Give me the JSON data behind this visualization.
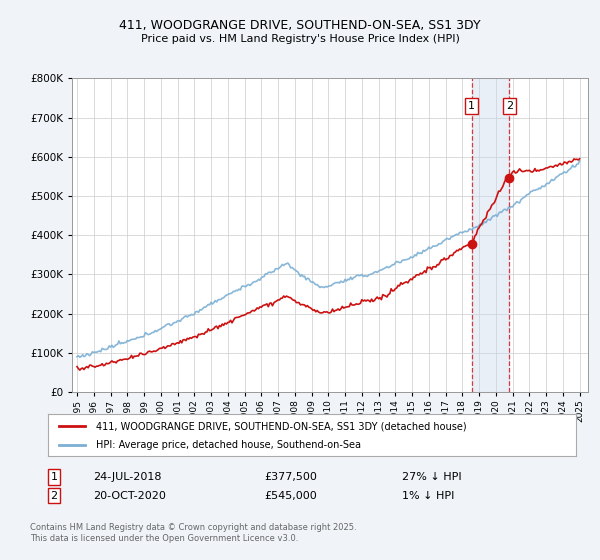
{
  "title": "411, WOODGRANGE DRIVE, SOUTHEND-ON-SEA, SS1 3DY",
  "subtitle": "Price paid vs. HM Land Registry's House Price Index (HPI)",
  "ylim": [
    0,
    800000
  ],
  "hpi_color": "#7bafd4",
  "price_color": "#cc1111",
  "annotation1_date": "24-JUL-2018",
  "annotation1_price": 377500,
  "annotation1_label": "27% ↓ HPI",
  "annotation2_date": "20-OCT-2020",
  "annotation2_price": 545000,
  "annotation2_label": "1% ↓ HPI",
  "vline_color": "#cc1111",
  "vregion_color": "#c8d8ec",
  "vregion_alpha": 0.4,
  "legend_label1": "411, WOODGRANGE DRIVE, SOUTHEND-ON-SEA, SS1 3DY (detached house)",
  "legend_label2": "HPI: Average price, detached house, Southend-on-Sea",
  "footnote": "Contains HM Land Registry data © Crown copyright and database right 2025.\nThis data is licensed under the Open Government Licence v3.0.",
  "background_color": "#f0f4f8",
  "plot_background": "#ffffff",
  "grid_color": "#cccccc",
  "sale1_year": 2018.55,
  "sale2_year": 2020.8
}
